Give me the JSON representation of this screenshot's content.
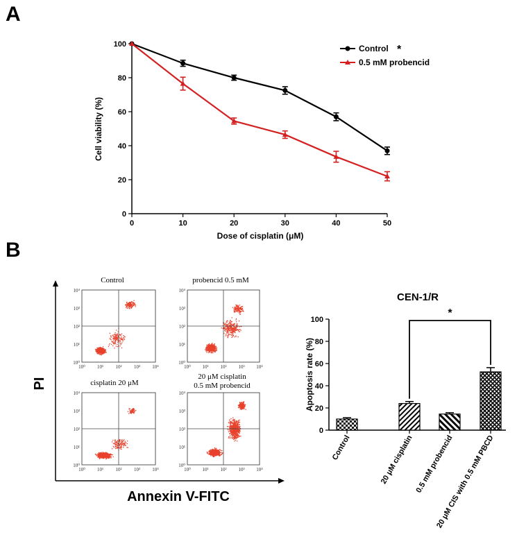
{
  "panels": {
    "a_label": "A",
    "b_label": "B"
  },
  "chart_data": [
    {
      "type": "line",
      "panel": "A",
      "title": "",
      "xlabel": "Dose of cisplatin (μM)",
      "ylabel": "Cell viability (%)",
      "x": [
        0,
        10,
        20,
        30,
        40,
        50
      ],
      "x_ticks": [
        "0",
        "10",
        "20",
        "30",
        "40",
        "50"
      ],
      "y_ticks": [
        "0",
        "20",
        "40",
        "60",
        "80",
        "100"
      ],
      "xlim": [
        0,
        50
      ],
      "ylim": [
        0,
        100
      ],
      "series": [
        {
          "name": "Control",
          "color": "#000000",
          "marker": "circle",
          "values": [
            100,
            88.5,
            80,
            72.5,
            57,
            37
          ],
          "errors": [
            0,
            1.8,
            1.5,
            2.2,
            2.3,
            2.2
          ]
        },
        {
          "name": "0.5 mM probencid",
          "color": "#d42020",
          "marker": "triangle",
          "values": [
            100,
            76.5,
            54.5,
            46.5,
            33.5,
            22
          ],
          "errors": [
            0,
            3.8,
            1.8,
            2.2,
            3.2,
            2.7
          ]
        }
      ],
      "legend": {
        "placement": "top-right",
        "significance": "*"
      }
    },
    {
      "type": "bar",
      "panel": "B",
      "title": "CEN-1/R",
      "xlabel": "",
      "ylabel": "Apoptosis rate (%)",
      "categories": [
        "Control",
        "20 μM cisplatin",
        "0.5 mM probencid",
        "20 μM CIS with 0.5 mM PBCD"
      ],
      "values": [
        10,
        24,
        14.5,
        52.5
      ],
      "errors": [
        1.2,
        1.8,
        1.2,
        3.8
      ],
      "y_ticks": [
        "0",
        "20",
        "40",
        "60",
        "80",
        "100"
      ],
      "ylim": [
        0,
        100
      ],
      "significance": {
        "between": [
          1,
          3
        ],
        "label": "*"
      }
    }
  ],
  "flow_cytometry": {
    "y_axis_label": "PI",
    "x_axis_label": "Annexin V-FITC",
    "dot_color": "#e8412c",
    "decade_ticks": [
      "10⁰",
      "10¹",
      "10²",
      "10³",
      "10⁴"
    ],
    "plots": [
      {
        "title_lines": [
          "Control"
        ]
      },
      {
        "title_lines": [
          "probencid 0.5 mM"
        ]
      },
      {
        "title_lines": [
          "cisplatin 20 μM"
        ]
      },
      {
        "title_lines": [
          "20 μM cisplatin",
          "0.5 mM probencid"
        ]
      }
    ]
  }
}
